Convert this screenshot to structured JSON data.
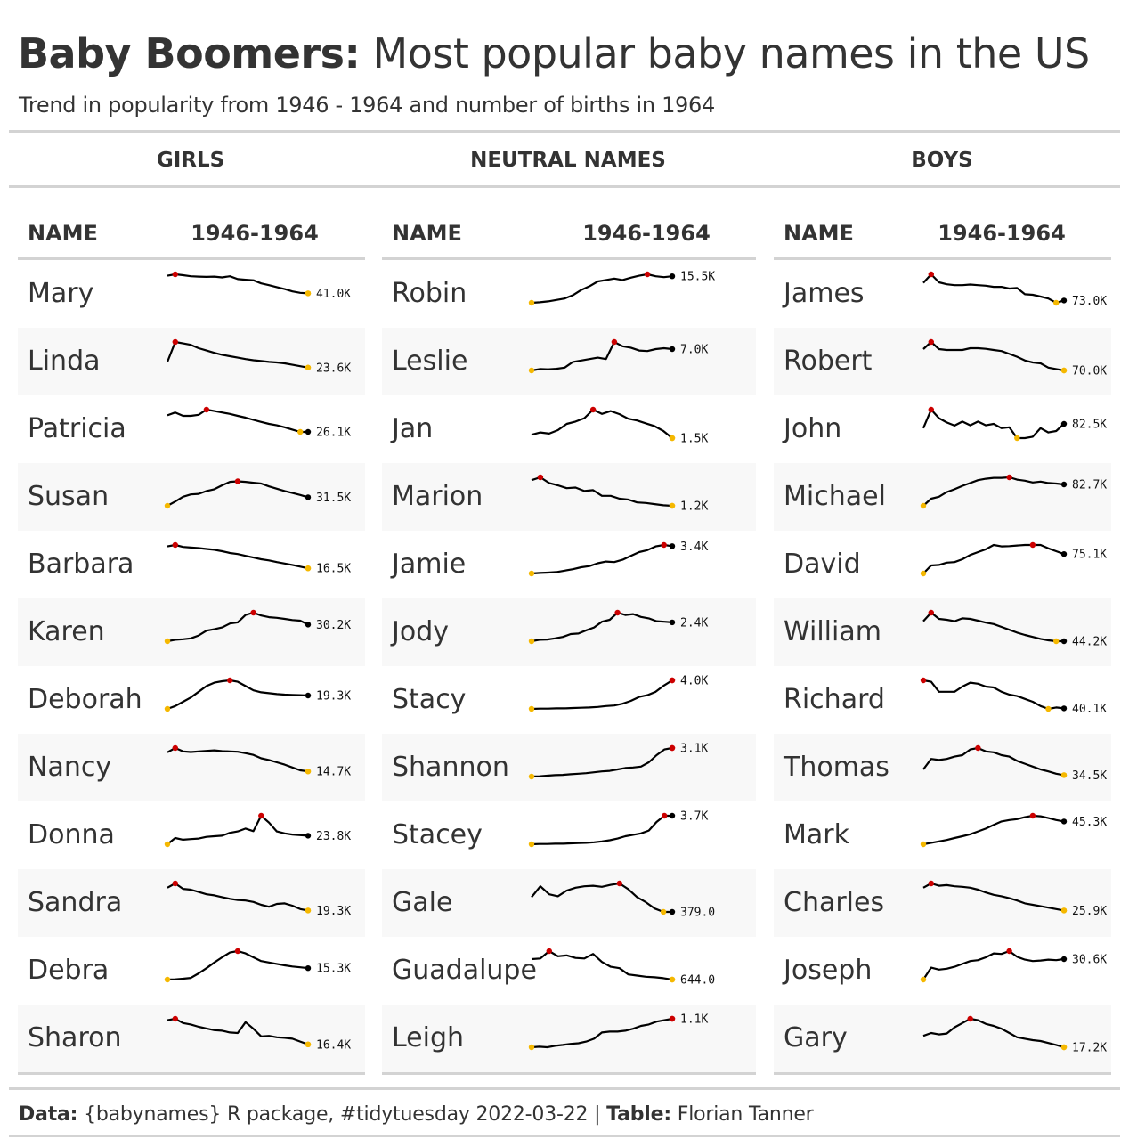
{
  "title": {
    "bold": "Baby Boomers:",
    "rest": "Most popular baby names in the US"
  },
  "subtitle": "Trend in popularity from 1946 - 1964 and number of births in 1964",
  "groups": [
    "GIRLS",
    "NEUTRAL NAMES",
    "BOYS"
  ],
  "column_headers": {
    "name": "NAME",
    "trend": "1946-1964"
  },
  "footer": {
    "data_label": "Data:",
    "data_text": "{babynames} R package, #tidytuesday 2022-03-22 |",
    "table_label": "Table:",
    "table_text": "Florian Tanner"
  },
  "colors": {
    "line": "#000000",
    "max_point": "#cc0000",
    "min_point": "#f5b800",
    "rule": "#d3d3d3",
    "stripe": "#f8f8f8"
  },
  "chart_data": [
    {
      "type": "table",
      "group": "GIRLS",
      "x_range": [
        1946,
        1964
      ],
      "rows": [
        {
          "name": "Mary",
          "label_1964": "41.0K",
          "trend": [
            0.95,
            1.0,
            0.97,
            0.93,
            0.92,
            0.91,
            0.92,
            0.89,
            0.93,
            0.83,
            0.81,
            0.79,
            0.68,
            0.62,
            0.55,
            0.48,
            0.4,
            0.35,
            0.33
          ]
        },
        {
          "name": "Linda",
          "label_1964": "23.6K",
          "trend": [
            0.3,
            1.0,
            0.95,
            0.9,
            0.78,
            0.7,
            0.62,
            0.55,
            0.5,
            0.45,
            0.4,
            0.36,
            0.33,
            0.3,
            0.28,
            0.25,
            0.2,
            0.15,
            0.1
          ]
        },
        {
          "name": "Patricia",
          "label_1964": "26.1K",
          "trend": [
            0.8,
            0.9,
            0.78,
            0.78,
            0.82,
            1.0,
            0.95,
            0.9,
            0.85,
            0.78,
            0.72,
            0.64,
            0.57,
            0.5,
            0.45,
            0.38,
            0.3,
            0.22,
            0.22
          ]
        },
        {
          "name": "Susan",
          "label_1964": "31.5K",
          "trend": [
            0.0,
            0.15,
            0.32,
            0.4,
            0.42,
            0.52,
            0.58,
            0.72,
            0.84,
            0.86,
            0.84,
            0.81,
            0.78,
            0.68,
            0.6,
            0.52,
            0.45,
            0.38,
            0.3
          ]
        },
        {
          "name": "Barbara",
          "label_1964": "16.5K",
          "trend": [
            0.95,
            1.0,
            0.93,
            0.91,
            0.89,
            0.86,
            0.83,
            0.78,
            0.72,
            0.68,
            0.62,
            0.56,
            0.5,
            0.46,
            0.4,
            0.35,
            0.3,
            0.24,
            0.18
          ]
        },
        {
          "name": "Karen",
          "label_1964": "30.2K",
          "trend": [
            0.0,
            0.05,
            0.07,
            0.1,
            0.2,
            0.37,
            0.42,
            0.48,
            0.62,
            0.66,
            0.92,
            1.0,
            0.9,
            0.84,
            0.82,
            0.78,
            0.74,
            0.72,
            0.58
          ]
        },
        {
          "name": "Deborah",
          "label_1964": "19.3K",
          "trend": [
            0.0,
            0.1,
            0.25,
            0.4,
            0.6,
            0.8,
            0.92,
            0.97,
            1.0,
            0.95,
            0.8,
            0.65,
            0.58,
            0.55,
            0.52,
            0.5,
            0.49,
            0.48,
            0.47
          ]
        },
        {
          "name": "Nancy",
          "label_1964": "14.7K",
          "trend": [
            0.85,
            1.0,
            0.88,
            0.86,
            0.88,
            0.9,
            0.92,
            0.89,
            0.88,
            0.87,
            0.82,
            0.76,
            0.64,
            0.58,
            0.5,
            0.42,
            0.32,
            0.22,
            0.18
          ]
        },
        {
          "name": "Donna",
          "label_1964": "23.8K",
          "trend": [
            0.0,
            0.22,
            0.16,
            0.18,
            0.2,
            0.26,
            0.28,
            0.3,
            0.4,
            0.45,
            0.55,
            0.46,
            1.0,
            0.76,
            0.45,
            0.38,
            0.34,
            0.32,
            0.3
          ]
        },
        {
          "name": "Sandra",
          "label_1964": "19.3K",
          "trend": [
            0.85,
            1.0,
            0.81,
            0.78,
            0.7,
            0.62,
            0.58,
            0.52,
            0.46,
            0.42,
            0.4,
            0.35,
            0.25,
            0.18,
            0.28,
            0.3,
            0.22,
            0.1,
            0.05
          ]
        },
        {
          "name": "Debra",
          "label_1964": "15.3K",
          "trend": [
            0.0,
            0.01,
            0.03,
            0.06,
            0.22,
            0.4,
            0.6,
            0.78,
            0.95,
            1.0,
            0.92,
            0.78,
            0.65,
            0.6,
            0.55,
            0.5,
            0.46,
            0.43,
            0.4
          ]
        },
        {
          "name": "Sharon",
          "label_1964": "16.4K",
          "trend": [
            0.95,
            1.0,
            0.85,
            0.8,
            0.72,
            0.66,
            0.6,
            0.58,
            0.52,
            0.5,
            0.88,
            0.65,
            0.38,
            0.4,
            0.35,
            0.33,
            0.3,
            0.2,
            0.1
          ]
        }
      ]
    },
    {
      "type": "table",
      "group": "NEUTRAL NAMES",
      "x_range": [
        1946,
        1964
      ],
      "rows": [
        {
          "name": "Robin",
          "label_1964": "15.5K",
          "trend": [
            0.0,
            0.02,
            0.05,
            0.1,
            0.15,
            0.27,
            0.45,
            0.58,
            0.75,
            0.8,
            0.85,
            0.8,
            0.88,
            0.95,
            1.0,
            0.93,
            0.9,
            0.93
          ]
        },
        {
          "name": "Leslie",
          "label_1964": "7.0K",
          "trend": [
            0.0,
            0.05,
            0.04,
            0.06,
            0.1,
            0.3,
            0.35,
            0.4,
            0.45,
            0.4,
            1.0,
            0.85,
            0.8,
            0.7,
            0.68,
            0.75,
            0.78,
            0.75
          ]
        },
        {
          "name": "Jan",
          "label_1964": "1.5K",
          "trend": [
            0.12,
            0.2,
            0.16,
            0.28,
            0.5,
            0.58,
            0.7,
            1.0,
            0.85,
            0.95,
            0.84,
            0.68,
            0.62,
            0.52,
            0.42,
            0.25,
            0.0
          ]
        },
        {
          "name": "Marion",
          "label_1964": "1.2K",
          "trend": [
            0.9,
            1.0,
            0.8,
            0.72,
            0.62,
            0.64,
            0.52,
            0.55,
            0.35,
            0.35,
            0.25,
            0.22,
            0.12,
            0.1,
            0.06,
            0.02,
            0.0
          ]
        },
        {
          "name": "Jamie",
          "label_1964": "3.4K",
          "trend": [
            0.0,
            0.02,
            0.03,
            0.05,
            0.1,
            0.15,
            0.22,
            0.26,
            0.36,
            0.42,
            0.4,
            0.48,
            0.62,
            0.75,
            0.82,
            0.95,
            1.0,
            0.96
          ]
        },
        {
          "name": "Jody",
          "label_1964": "2.4K",
          "trend": [
            0.0,
            0.05,
            0.06,
            0.1,
            0.15,
            0.25,
            0.27,
            0.38,
            0.48,
            0.68,
            0.75,
            1.0,
            0.92,
            0.95,
            0.85,
            0.8,
            0.7,
            0.68,
            0.66
          ]
        },
        {
          "name": "Stacy",
          "label_1964": "4.0K",
          "trend": [
            0.0,
            0.01,
            0.01,
            0.02,
            0.02,
            0.03,
            0.04,
            0.05,
            0.07,
            0.1,
            0.12,
            0.18,
            0.28,
            0.42,
            0.48,
            0.6,
            0.82,
            1.0
          ]
        },
        {
          "name": "Shannon",
          "label_1964": "3.1K",
          "trend": [
            0.0,
            0.01,
            0.03,
            0.05,
            0.06,
            0.08,
            0.1,
            0.12,
            0.15,
            0.18,
            0.2,
            0.25,
            0.3,
            0.32,
            0.35,
            0.5,
            0.75,
            0.95,
            1.0
          ]
        },
        {
          "name": "Stacey",
          "label_1964": "3.7K",
          "trend": [
            0.0,
            0.01,
            0.01,
            0.02,
            0.02,
            0.03,
            0.04,
            0.05,
            0.07,
            0.1,
            0.14,
            0.2,
            0.28,
            0.33,
            0.38,
            0.48,
            0.78,
            1.0,
            1.0
          ]
        },
        {
          "name": "Gale",
          "label_1964": "379.0",
          "trend": [
            0.52,
            0.9,
            0.62,
            0.55,
            0.75,
            0.85,
            0.9,
            0.92,
            0.88,
            0.95,
            1.0,
            0.8,
            0.52,
            0.34,
            0.12,
            0.0,
            0.0
          ]
        },
        {
          "name": "Guadalupe",
          "label_1964": "644.0",
          "trend": [
            0.72,
            0.74,
            1.0,
            0.82,
            0.85,
            0.76,
            0.74,
            0.9,
            0.62,
            0.45,
            0.4,
            0.18,
            0.14,
            0.1,
            0.08,
            0.05,
            0.0
          ]
        },
        {
          "name": "Leigh",
          "label_1964": "1.1K",
          "trend": [
            0.0,
            0.02,
            0.0,
            0.05,
            0.08,
            0.12,
            0.14,
            0.2,
            0.3,
            0.52,
            0.55,
            0.55,
            0.58,
            0.65,
            0.75,
            0.8,
            0.9,
            0.95,
            1.0
          ]
        }
      ]
    },
    {
      "type": "table",
      "group": "BOYS",
      "x_range": [
        1946,
        1964
      ],
      "rows": [
        {
          "name": "James",
          "label_1964": "73.0K",
          "trend": [
            0.7,
            1.0,
            0.72,
            0.65,
            0.62,
            0.62,
            0.64,
            0.62,
            0.6,
            0.56,
            0.56,
            0.5,
            0.52,
            0.3,
            0.28,
            0.22,
            0.15,
            0.0,
            0.08
          ]
        },
        {
          "name": "Robert",
          "label_1964": "70.0K",
          "trend": [
            0.75,
            1.0,
            0.75,
            0.72,
            0.72,
            0.72,
            0.78,
            0.78,
            0.76,
            0.72,
            0.68,
            0.58,
            0.48,
            0.35,
            0.28,
            0.25,
            0.1,
            0.05,
            0.0
          ]
        },
        {
          "name": "John",
          "label_1964": "82.5K",
          "trend": [
            0.35,
            1.0,
            0.7,
            0.55,
            0.44,
            0.58,
            0.45,
            0.58,
            0.45,
            0.5,
            0.35,
            0.38,
            0.0,
            0.0,
            0.05,
            0.35,
            0.2,
            0.25,
            0.5
          ]
        },
        {
          "name": "Michael",
          "label_1964": "82.7K",
          "trend": [
            0.0,
            0.25,
            0.32,
            0.48,
            0.58,
            0.7,
            0.8,
            0.9,
            0.95,
            0.98,
            0.98,
            1.0,
            0.92,
            0.88,
            0.82,
            0.85,
            0.8,
            0.78,
            0.75
          ]
        },
        {
          "name": "David",
          "label_1964": "75.1K",
          "trend": [
            0.0,
            0.28,
            0.3,
            0.38,
            0.4,
            0.5,
            0.65,
            0.75,
            0.85,
            1.0,
            0.95,
            0.96,
            0.98,
            1.0,
            1.05,
            1.0,
            0.88,
            0.78,
            0.68
          ]
        },
        {
          "name": "William",
          "label_1964": "44.2K",
          "trend": [
            0.7,
            1.0,
            0.78,
            0.75,
            0.7,
            0.8,
            0.78,
            0.72,
            0.65,
            0.6,
            0.5,
            0.4,
            0.3,
            0.22,
            0.15,
            0.08,
            0.03,
            0.0,
            0.0
          ]
        },
        {
          "name": "Richard",
          "label_1964": "40.1K",
          "trend": [
            1.0,
            0.95,
            0.6,
            0.6,
            0.6,
            0.78,
            0.92,
            0.88,
            0.78,
            0.75,
            0.6,
            0.5,
            0.45,
            0.35,
            0.25,
            0.1,
            0.0,
            0.05,
            0.02
          ]
        },
        {
          "name": "Thomas",
          "label_1964": "34.5K",
          "trend": [
            0.25,
            0.62,
            0.58,
            0.62,
            0.7,
            0.75,
            0.95,
            1.0,
            0.88,
            0.85,
            0.75,
            0.7,
            0.55,
            0.45,
            0.35,
            0.25,
            0.18,
            0.1,
            0.05
          ]
        },
        {
          "name": "Mark",
          "label_1964": "45.3K",
          "trend": [
            0.0,
            0.05,
            0.1,
            0.15,
            0.22,
            0.28,
            0.35,
            0.45,
            0.55,
            0.68,
            0.8,
            0.85,
            0.88,
            0.95,
            1.0,
            0.98,
            0.92,
            0.85,
            0.8
          ]
        },
        {
          "name": "Charles",
          "label_1964": "25.9K",
          "trend": [
            0.85,
            1.0,
            0.92,
            0.94,
            0.9,
            0.88,
            0.85,
            0.78,
            0.68,
            0.6,
            0.55,
            0.48,
            0.4,
            0.3,
            0.25,
            0.2,
            0.15,
            0.1,
            0.05
          ]
        },
        {
          "name": "Joseph",
          "label_1964": "30.6K",
          "trend": [
            0.0,
            0.42,
            0.35,
            0.38,
            0.45,
            0.55,
            0.65,
            0.68,
            0.78,
            0.92,
            0.9,
            1.0,
            0.8,
            0.7,
            0.65,
            0.67,
            0.7,
            0.68,
            0.72
          ]
        },
        {
          "name": "Gary",
          "label_1964": "17.2K",
          "trend": [
            0.4,
            0.5,
            0.45,
            0.48,
            0.7,
            0.85,
            1.0,
            0.95,
            0.82,
            0.75,
            0.65,
            0.5,
            0.35,
            0.3,
            0.25,
            0.22,
            0.15,
            0.08,
            0.0
          ]
        }
      ]
    }
  ]
}
